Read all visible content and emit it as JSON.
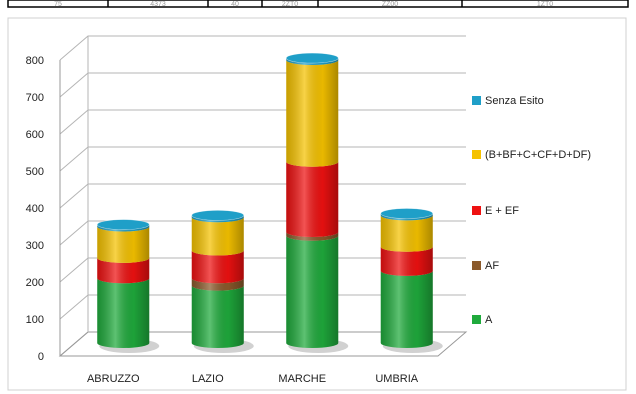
{
  "table_strip": {
    "cells": [
      "75",
      "4373",
      "40",
      "2ZT0",
      "ZZ00",
      "1ZT0"
    ]
  },
  "chart_data": {
    "type": "bar",
    "stacked": true,
    "style": "3d-cylinder",
    "categories": [
      "ABRUZZO",
      "LAZIO",
      "MARCHE",
      "UMBRIA"
    ],
    "ylim": [
      0,
      800
    ],
    "yticks": [
      0,
      100,
      200,
      300,
      400,
      500,
      600,
      700,
      800
    ],
    "grid": true,
    "legend_position": "right",
    "series": [
      {
        "name": "A",
        "color": "#1faa3c",
        "values": [
          175,
          155,
          290,
          195
        ]
      },
      {
        "name": "AF",
        "color": "#8b5a2b",
        "values": [
          0,
          20,
          10,
          0
        ]
      },
      {
        "name": "E + EF",
        "color": "#ee1111",
        "values": [
          55,
          75,
          190,
          65
        ]
      },
      {
        "name": "(B+BF+C+CF+D+DF)",
        "color": "#f5c200",
        "values": [
          85,
          90,
          275,
          85
        ]
      },
      {
        "name": "Senza Esito",
        "color": "#1f9fc8",
        "values": [
          5,
          5,
          5,
          5
        ]
      }
    ]
  }
}
